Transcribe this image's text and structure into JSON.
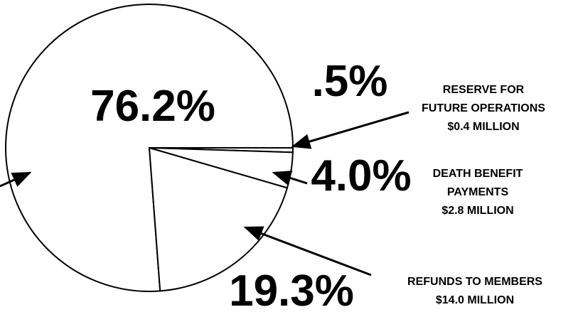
{
  "chart_data": {
    "type": "pie",
    "categories": [
      null,
      "RESERVE FOR\nFUTURE OPERATIONS\n$0.4 MILLION",
      "DEATH BENEFIT\nPAYMENTS\n$2.8 MILLION",
      "REFUNDS TO MEMBERS\n$14.0 MILLION"
    ],
    "values": [
      76.2,
      0.5,
      4.0,
      19.3
    ],
    "value_labels": [
      "76.2%",
      ".5%",
      "4.0%",
      "19.3%"
    ],
    "color": "#ffffff"
  }
}
